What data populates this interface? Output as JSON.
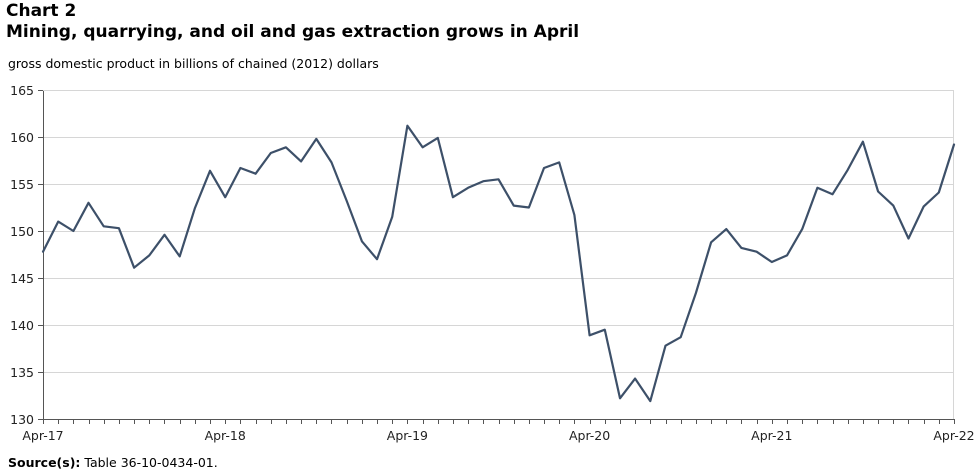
{
  "header": {
    "chart_number": "Chart 2",
    "title": "Mining, quarrying, and oil and gas extraction grows in April",
    "subtitle": "gross domestic product in billions of chained (2012) dollars"
  },
  "source": {
    "label": "Source(s):",
    "text": "Table 36-10-0434-01."
  },
  "chart_data": {
    "type": "line",
    "title": "Mining, quarrying, and oil and gas extraction grows in April",
    "ylabel": "gross domestic product in billions of chained (2012) dollars",
    "xlabel": "",
    "ylim": [
      130,
      165
    ],
    "yticks": [
      130,
      135,
      140,
      145,
      150,
      155,
      160,
      165
    ],
    "grid": true,
    "line_color": "#3d5069",
    "x_tick_labels": [
      {
        "index": 0,
        "label": "Apr-17"
      },
      {
        "index": 12,
        "label": "Apr-18"
      },
      {
        "index": 24,
        "label": "Apr-19"
      },
      {
        "index": 36,
        "label": "Apr-20"
      },
      {
        "index": 48,
        "label": "Apr-21"
      },
      {
        "index": 60,
        "label": "Apr-22"
      }
    ],
    "x": [
      "2017-04",
      "2017-05",
      "2017-06",
      "2017-07",
      "2017-08",
      "2017-09",
      "2017-10",
      "2017-11",
      "2017-12",
      "2018-01",
      "2018-02",
      "2018-03",
      "2018-04",
      "2018-05",
      "2018-06",
      "2018-07",
      "2018-08",
      "2018-09",
      "2018-10",
      "2018-11",
      "2018-12",
      "2019-01",
      "2019-02",
      "2019-03",
      "2019-04",
      "2019-05",
      "2019-06",
      "2019-07",
      "2019-08",
      "2019-09",
      "2019-10",
      "2019-11",
      "2019-12",
      "2020-01",
      "2020-02",
      "2020-03",
      "2020-04",
      "2020-05",
      "2020-06",
      "2020-07",
      "2020-08",
      "2020-09",
      "2020-10",
      "2020-11",
      "2020-12",
      "2021-01",
      "2021-02",
      "2021-03",
      "2021-04",
      "2021-05",
      "2021-06",
      "2021-07",
      "2021-08",
      "2021-09",
      "2021-10",
      "2021-11",
      "2021-12",
      "2022-01",
      "2022-02",
      "2022-03",
      "2022-04"
    ],
    "series": [
      {
        "name": "Mining, quarrying, and oil and gas extraction",
        "values": [
          147.8,
          151.0,
          150.0,
          153.0,
          150.5,
          150.3,
          146.1,
          147.4,
          149.6,
          147.3,
          152.4,
          156.4,
          153.6,
          156.7,
          156.1,
          158.3,
          158.9,
          157.4,
          159.8,
          157.3,
          153.2,
          148.9,
          147.0,
          151.5,
          161.2,
          158.9,
          159.9,
          153.6,
          154.6,
          155.3,
          155.5,
          152.7,
          152.5,
          156.7,
          157.3,
          151.7,
          138.9,
          139.5,
          132.2,
          134.3,
          131.9,
          137.8,
          138.7,
          143.4,
          148.8,
          150.2,
          148.2,
          147.8,
          146.7,
          147.4,
          150.2,
          154.6,
          153.9,
          156.5,
          159.5,
          154.2,
          152.7,
          149.2,
          152.6,
          154.1,
          159.2
        ]
      }
    ]
  }
}
